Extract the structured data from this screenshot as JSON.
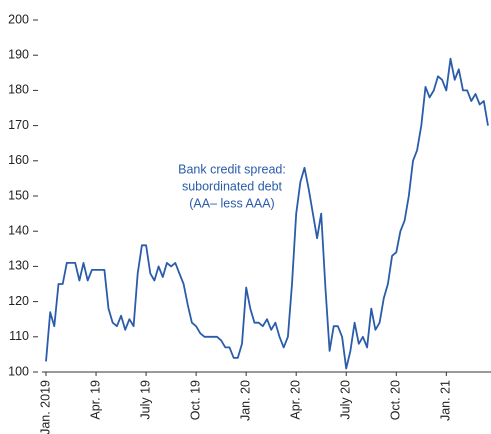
{
  "chart_data": {
    "type": "line",
    "annotation": [
      "Bank credit spread:",
      "subordinated debt",
      "(AA– less AAA)"
    ],
    "categories": [
      "Jan. 2019",
      null,
      null,
      null,
      null,
      null,
      null,
      null,
      null,
      null,
      null,
      null,
      "Apr. 19",
      null,
      null,
      null,
      null,
      null,
      null,
      null,
      null,
      null,
      null,
      null,
      "July 19",
      null,
      null,
      null,
      null,
      null,
      null,
      null,
      null,
      null,
      null,
      null,
      "Oct. 19",
      null,
      null,
      null,
      null,
      null,
      null,
      null,
      null,
      null,
      null,
      null,
      "Jan. 20",
      null,
      null,
      null,
      null,
      null,
      null,
      null,
      null,
      null,
      null,
      null,
      "Apr. 20",
      null,
      null,
      null,
      null,
      null,
      null,
      null,
      null,
      null,
      null,
      null,
      "July 20",
      null,
      null,
      null,
      null,
      null,
      null,
      null,
      null,
      null,
      null,
      null,
      "Oct. 20",
      null,
      null,
      null,
      null,
      null,
      null,
      null,
      null,
      null,
      null,
      null,
      "Jan. 21",
      null,
      null,
      null,
      null,
      null,
      null,
      null,
      null,
      null,
      null
    ],
    "series": [
      {
        "color": "#2a5caa",
        "values": [
          103,
          117,
          113,
          125,
          125,
          131,
          131,
          131,
          126,
          131,
          126,
          129,
          129,
          129,
          129,
          118,
          114,
          113,
          116,
          112,
          115,
          113,
          128,
          136,
          136,
          128,
          126,
          130,
          127,
          131,
          130,
          131,
          128,
          125,
          119,
          114,
          113,
          111,
          110,
          110,
          110,
          110,
          109,
          107,
          107,
          104,
          104,
          108,
          124,
          118,
          114,
          114,
          113,
          115,
          112,
          114,
          110,
          107,
          110,
          125,
          145,
          154,
          158,
          152,
          145,
          138,
          145,
          124,
          106,
          113,
          113,
          110,
          101,
          106,
          114,
          108,
          110,
          107,
          118,
          112,
          114,
          121,
          125,
          133,
          134,
          140,
          143,
          150,
          160,
          163,
          170,
          181,
          178,
          180,
          184,
          183,
          180,
          189,
          183,
          186,
          180,
          180,
          177,
          179,
          176,
          177,
          170
        ]
      }
    ],
    "ylim": [
      100,
      200
    ],
    "yticks": [
      100,
      110,
      120,
      130,
      140,
      150,
      160,
      170,
      180,
      190,
      200
    ]
  }
}
